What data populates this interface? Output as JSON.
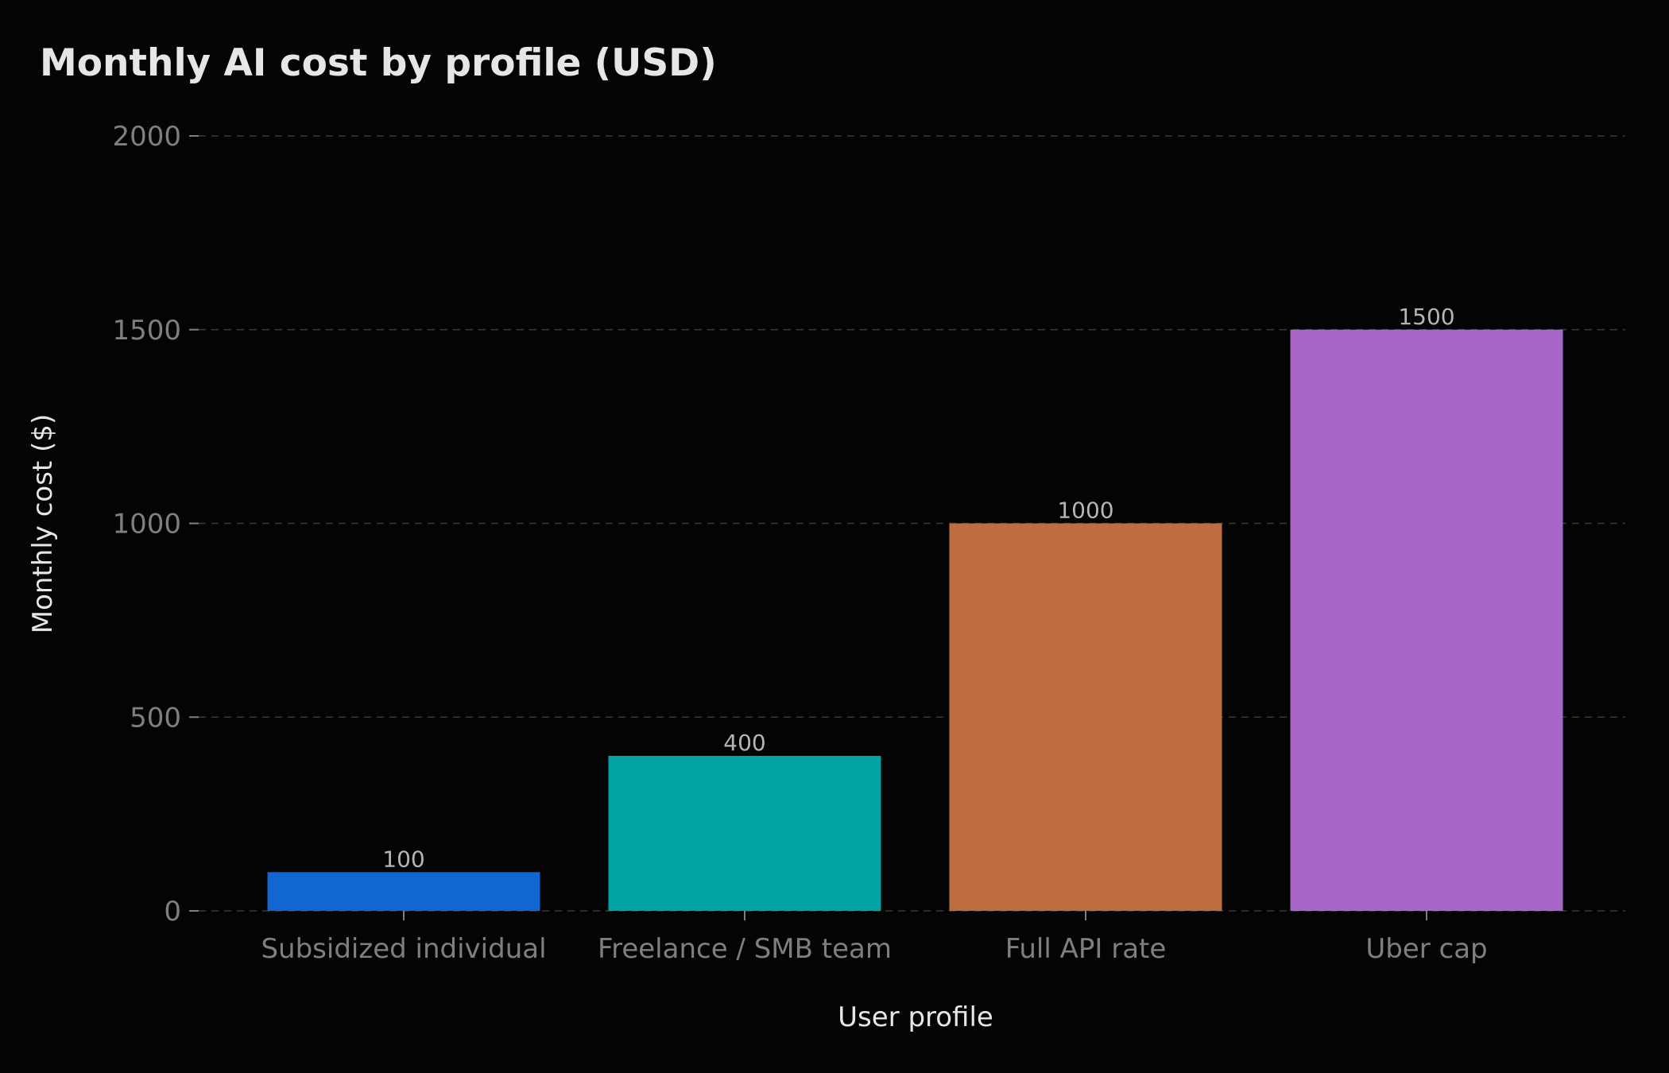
{
  "chart_data": {
    "type": "bar",
    "title": "Monthly AI cost by profile (USD)",
    "xlabel": "User profile",
    "ylabel": "Monthly cost ($)",
    "categories": [
      "Subsidized individual",
      "Freelance / SMB team",
      "Full API rate",
      "Uber cap"
    ],
    "values": [
      100,
      400,
      1000,
      1500
    ],
    "data_labels": [
      "100",
      "400",
      "1000",
      "1500"
    ],
    "colors": [
      "#1266d0",
      "#02a3a3",
      "#be6d3f",
      "#a866c9"
    ],
    "ylim": [
      0,
      2000
    ],
    "yticks": [
      0,
      500,
      1000,
      1500,
      2000
    ],
    "ytick_labels": [
      "0",
      "500",
      "1000",
      "1500",
      "2000"
    ],
    "grid": true,
    "legend": "none"
  }
}
